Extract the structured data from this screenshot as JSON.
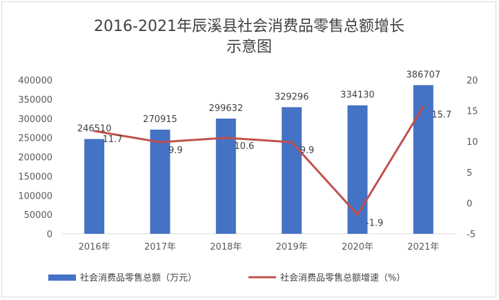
{
  "chart_data": {
    "type": "bar+line",
    "title_lines": [
      "2016-2021年辰溪县社会消费品零售总额增长",
      "示意图"
    ],
    "categories": [
      "2016年",
      "2017年",
      "2018年",
      "2019年",
      "2020年",
      "2021年"
    ],
    "series": [
      {
        "name": "社会消费品零售总额（万元）",
        "type": "bar",
        "axis": "left",
        "color": "#4472c4",
        "values": [
          246510,
          270915,
          299632,
          329296,
          334130,
          386707
        ],
        "labels": [
          "246510",
          "270915",
          "299632",
          "329296",
          "334130",
          "386707"
        ]
      },
      {
        "name": "社会消费品零售总额增速（%）",
        "type": "line",
        "axis": "right",
        "color": "#c0504d",
        "values": [
          11.7,
          9.9,
          10.6,
          9.9,
          -1.9,
          15.7
        ],
        "labels": [
          "11.7",
          "9.9",
          "10.6",
          "9.9",
          "-1.9",
          "15.7"
        ]
      }
    ],
    "y_left": {
      "min": 0,
      "max": 400000,
      "ticks": [
        "0",
        "50000",
        "100000",
        "150000",
        "200000",
        "250000",
        "300000",
        "350000",
        "400000"
      ]
    },
    "y_right": {
      "min": -5,
      "max": 20,
      "ticks": [
        "-5",
        "0",
        "5",
        "10",
        "15",
        "20"
      ]
    },
    "grid": false,
    "legend": "bottom"
  }
}
